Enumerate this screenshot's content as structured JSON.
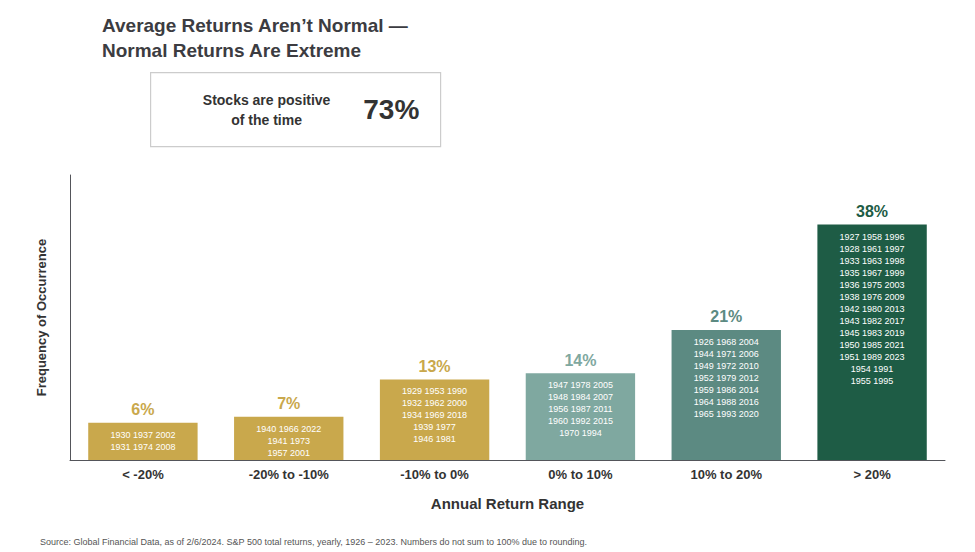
{
  "chart_data": {
    "type": "bar",
    "title": "Average Returns Aren’t Normal —\nNormal Returns Are Extreme",
    "xlabel": "Annual Return Range",
    "ylabel": "Frequency of Occurrence",
    "categories": [
      "< -20%",
      "-20% to -10%",
      "-10% to 0%",
      "0% to 10%",
      "10% to 20%",
      "> 20%"
    ],
    "values": [
      6,
      7,
      13,
      14,
      21,
      38
    ],
    "value_labels": [
      "6%",
      "7%",
      "13%",
      "14%",
      "21%",
      "38%"
    ],
    "colors": [
      "#C9A84C",
      "#C9A84C",
      "#C9A84C",
      "#7FA8A0",
      "#5C8A82",
      "#1E5C45"
    ],
    "bar_texts": [
      [
        "1930 1937 2002",
        "1931 1974 2008"
      ],
      [
        "1940 1966 2022",
        "1941 1973",
        "1957 2001"
      ],
      [
        "1929 1953 1990",
        "1932 1962 2000",
        "1934 1969 2018",
        "1939 1977",
        "1946 1981"
      ],
      [
        "1947 1978 2005",
        "1948 1984 2007",
        "1956 1987 2011",
        "1960 1992 2015",
        "1970 1994"
      ],
      [
        "1926 1968 2004",
        "1944 1971 2006",
        "1949 1972 2010",
        "1952 1979 2012",
        "1959 1986 2014",
        "1964 1988 2016",
        "1965 1993 2020"
      ],
      [
        "1927 1958 1996",
        "1928 1961 1997",
        "1933 1963 1998",
        "1935 1967 1999",
        "1936 1975 2003",
        "1938 1976 2009",
        "1942 1980 2013",
        "1943 1982 2017",
        "1945 1983 2019",
        "1950 1985 2021",
        "1951 1989 2023",
        "1954 1991",
        "1955 1995"
      ]
    ],
    "annotations": [
      "Stocks are positive\nof the time",
      "73%",
      "Source: Global Financial Data, as of 2/6/2024. S&P 500 total returns, yearly, 1926 – 2023. Numbers do not sum to 100% due to rounding."
    ],
    "ylim": [
      0,
      46
    ],
    "grid": false,
    "data_labels": true,
    "tick_labels": "x"
  }
}
